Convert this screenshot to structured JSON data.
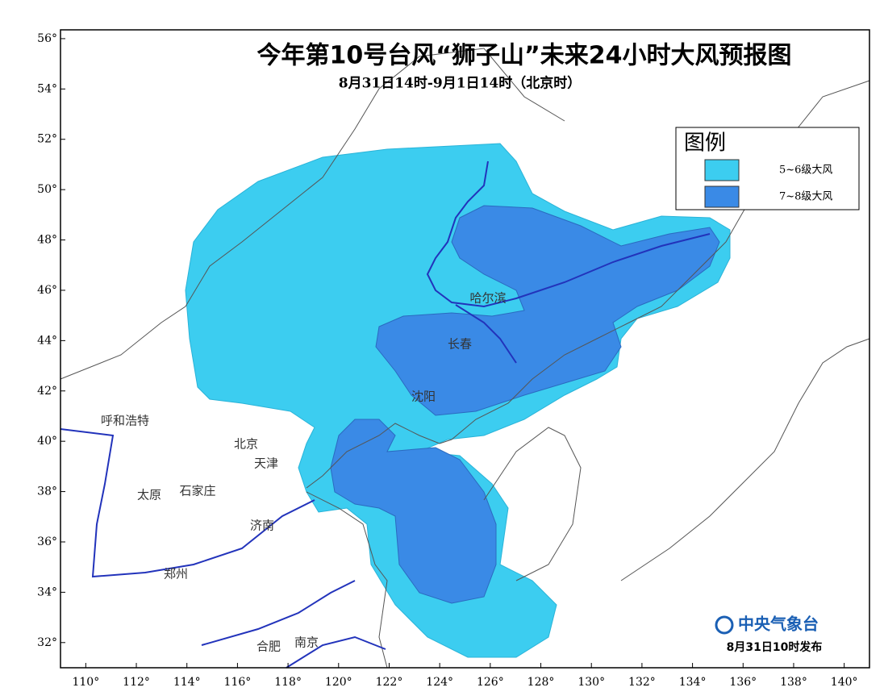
{
  "header": {
    "title": "今年第10号台风“狮子山”未来24小时大风预报图",
    "subtitle": "8月31日14时-9月1日14时（北京时）"
  },
  "legend": {
    "title": "图例",
    "items": [
      {
        "label": "5~6级大风",
        "color": "#3ccdf0"
      },
      {
        "label": "7~8级大风",
        "color": "#3a8ae6"
      }
    ]
  },
  "map": {
    "lonlim": [
      109,
      141
    ],
    "latlim": [
      31,
      56.35
    ],
    "lon_ticks": [
      {
        "value": 110,
        "label": "110°"
      },
      {
        "value": 112,
        "label": "112°"
      },
      {
        "value": 114,
        "label": "114°"
      },
      {
        "value": 116,
        "label": "116°"
      },
      {
        "value": 118,
        "label": "118°"
      },
      {
        "value": 120,
        "label": "120°"
      },
      {
        "value": 122,
        "label": "122°"
      },
      {
        "value": 124,
        "label": "124°"
      },
      {
        "value": 126,
        "label": "126°"
      },
      {
        "value": 128,
        "label": "128°"
      },
      {
        "value": 130,
        "label": "130°"
      },
      {
        "value": 132,
        "label": "132°"
      },
      {
        "value": 134,
        "label": "134°"
      },
      {
        "value": 136,
        "label": "136°"
      },
      {
        "value": 138,
        "label": "138°"
      },
      {
        "value": 140,
        "label": "140°"
      }
    ],
    "lat_ticks": [
      {
        "value": 32,
        "label": "32°"
      },
      {
        "value": 34,
        "label": "34°"
      },
      {
        "value": 36,
        "label": "36°"
      },
      {
        "value": 38,
        "label": "38°"
      },
      {
        "value": 40,
        "label": "40°"
      },
      {
        "value": 42,
        "label": "42°"
      },
      {
        "value": 44,
        "label": "44°"
      },
      {
        "value": 46,
        "label": "46°"
      },
      {
        "value": 48,
        "label": "48°"
      },
      {
        "value": 50,
        "label": "50°"
      },
      {
        "value": 52,
        "label": "52°"
      },
      {
        "value": 54,
        "label": "54°"
      },
      {
        "value": 56,
        "label": "56°"
      }
    ]
  },
  "cities": [
    "哈尔滨",
    "长春",
    "沈阳",
    "呼和浩特",
    "北京",
    "天津",
    "太原",
    "石家庄",
    "济南",
    "郑州",
    "合肥",
    "南京"
  ],
  "footer": {
    "issuer": "中央气象台",
    "issued": "8月31日10时发布"
  }
}
